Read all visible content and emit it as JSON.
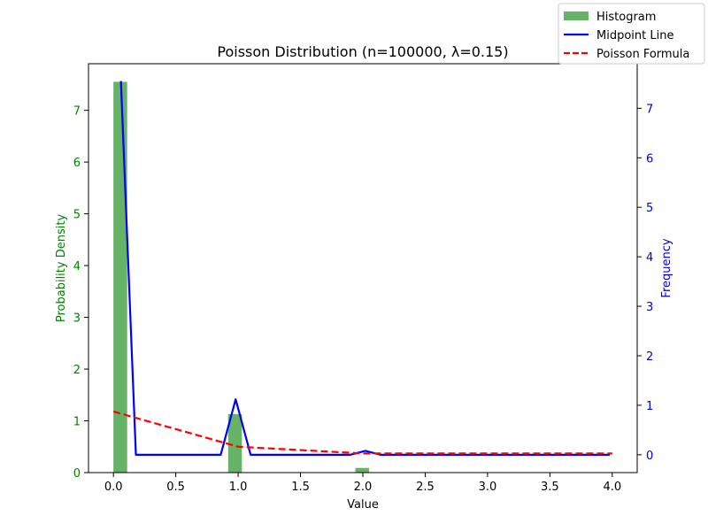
{
  "chart_data": {
    "type": "bar",
    "title": "Poisson Distribution (n=100000, λ=0.15)",
    "xlabel": "Value",
    "ylabel_left": "Probability Density",
    "ylabel_right": "Frequency",
    "xlim": [
      -0.2,
      4.2
    ],
    "ylim_left": [
      0,
      7.9
    ],
    "ylim_right": [
      -0.36,
      7.9
    ],
    "x_ticks": [
      0.0,
      0.5,
      1.0,
      1.5,
      2.0,
      2.5,
      3.0,
      3.5,
      4.0
    ],
    "y_left_ticks": [
      0,
      1,
      2,
      3,
      4,
      5,
      6,
      7
    ],
    "y_right_ticks": [
      0,
      1,
      2,
      3,
      4,
      5,
      6,
      7
    ],
    "grid": false,
    "legend_position": "top-right",
    "colors": {
      "histogram": "#66b266",
      "midpoint": "#0000ff",
      "poisson": "#ff0000",
      "left_axis": "#008000",
      "right_axis": "#0000cc"
    },
    "series": [
      {
        "name": "Histogram",
        "kind": "bar",
        "axis": "left",
        "bar_width": 0.11,
        "bars": [
          {
            "x": 0.0,
            "value": 7.55
          },
          {
            "x": 0.92,
            "value": 1.13
          },
          {
            "x": 1.94,
            "value": 0.09
          }
        ]
      },
      {
        "name": "Midpoint Line",
        "kind": "line",
        "axis": "right",
        "x": [
          0.06,
          0.18,
          0.86,
          0.98,
          1.1,
          1.9,
          2.02,
          2.14,
          3.98
        ],
        "y": [
          7.55,
          0.0,
          0.0,
          1.12,
          0.0,
          0.0,
          0.08,
          0.0,
          0.0
        ]
      },
      {
        "name": "Poisson Formula",
        "kind": "line",
        "axis": "left",
        "x": [
          0,
          1,
          2,
          3,
          4
        ],
        "y": [
          1.18,
          0.5,
          0.37,
          0.37,
          0.37
        ]
      }
    ]
  }
}
